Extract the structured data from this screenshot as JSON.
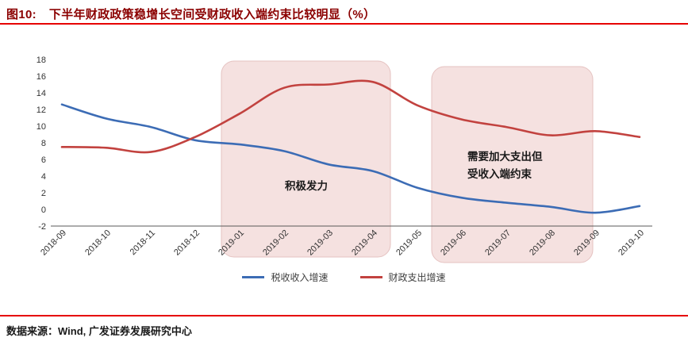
{
  "page": {
    "title_label": "图10:",
    "title_text": "下半年财政政策稳增长空间受财政收入端约束比较明显（%）",
    "source_text": "数据来源：Wind, 广发证券发展研究中心"
  },
  "colors": {
    "title": "#8b0000",
    "rule": "#e60000",
    "highlight_fill": "#f3dcdb",
    "highlight_stroke": "#e5c2c1",
    "axis": "#595959",
    "tick_text": "#333333",
    "annotation_text": "#1a1a1a"
  },
  "chart_data": {
    "type": "line",
    "title": "下半年财政政策稳增长空间受财政收入端约束比较明显（%）",
    "categories": [
      "2018-09",
      "2018-10",
      "2018-11",
      "2018-12",
      "2019-01",
      "2019-02",
      "2019-03",
      "2019-04",
      "2019-05",
      "2019-06",
      "2019-07",
      "2019-08",
      "2019-09",
      "2019-10"
    ],
    "series": [
      {
        "name": "税收收入增速",
        "color": "#3c6cb5",
        "values": [
          12.6,
          10.9,
          9.9,
          8.3,
          7.8,
          7.0,
          5.4,
          4.6,
          2.6,
          1.4,
          0.8,
          0.3,
          -0.4,
          0.4
        ]
      },
      {
        "name": "财政支出增速",
        "color": "#c2423f",
        "values": [
          7.5,
          7.4,
          6.9,
          8.7,
          11.5,
          14.6,
          15.0,
          15.3,
          12.5,
          10.8,
          9.9,
          8.9,
          9.4,
          8.7
        ]
      }
    ],
    "ylim": [
      -2,
      18
    ],
    "yticks": [
      18,
      16,
      14,
      12,
      10,
      8,
      6,
      4,
      2,
      0,
      -2
    ],
    "grid": false,
    "legend_position": "bottom",
    "annotations": [
      {
        "lines": [
          "积极发力"
        ],
        "from": "2019-01",
        "to": "2019-04"
      },
      {
        "lines": [
          "需要加大支出但",
          "受收入端约束"
        ],
        "from": "2019-06",
        "to": "2019-09"
      }
    ]
  }
}
